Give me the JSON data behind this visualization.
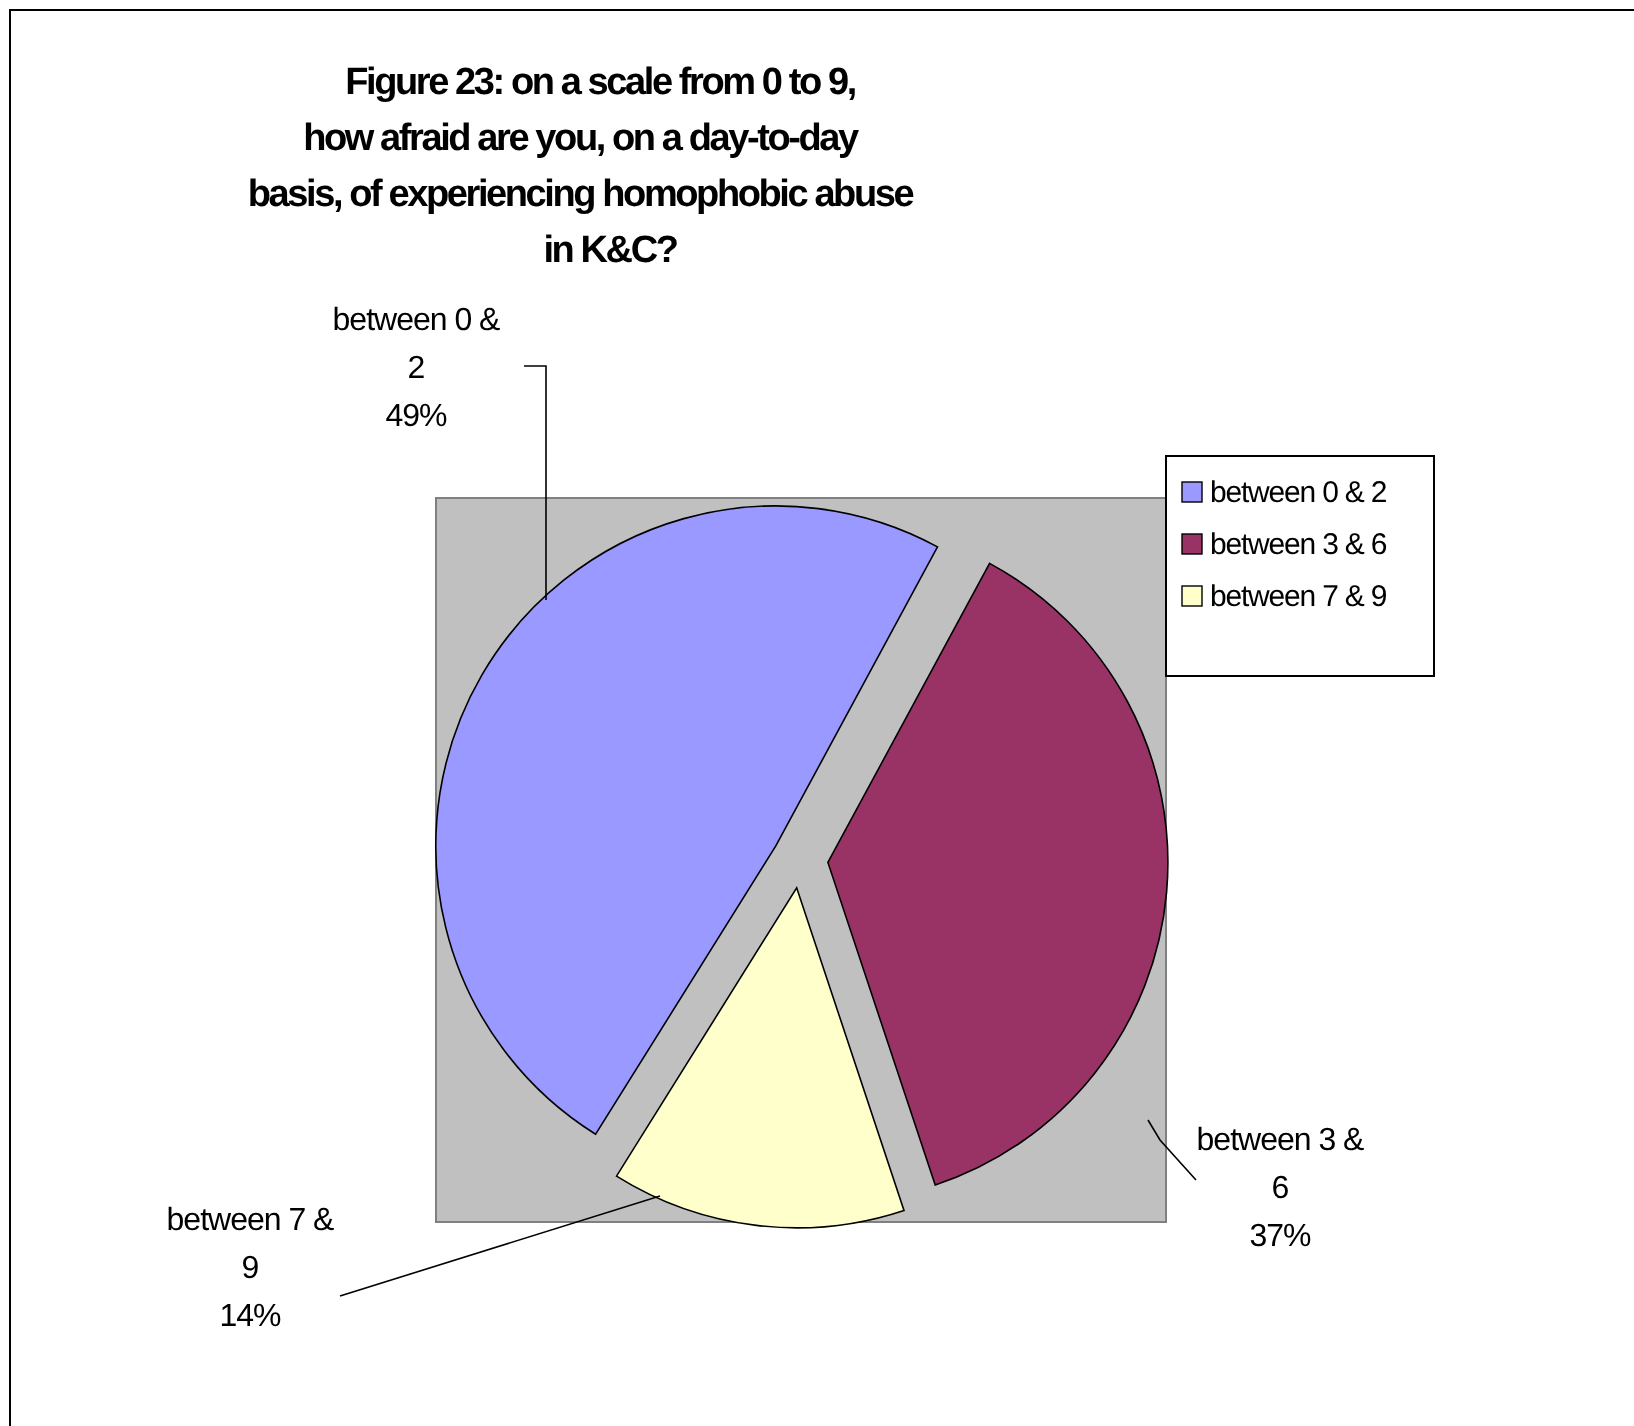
{
  "chart_data": {
    "type": "pie",
    "title": "Figure 23: on a scale from 0 to 9, how afraid are you, on a day-to-day basis, of experiencing homophobic abuse in K&C?",
    "categories": [
      "between 0 & 2",
      "between 3 & 6",
      "between 7 & 9"
    ],
    "values": [
      49,
      37,
      14
    ],
    "colors": [
      "#9999ff",
      "#993366",
      "#ffffcc"
    ],
    "value_labels": [
      "49%",
      "37%",
      "14%"
    ],
    "legend": "right"
  }
}
